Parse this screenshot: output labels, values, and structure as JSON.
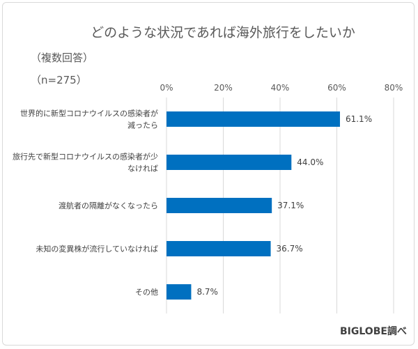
{
  "chart_data": {
    "type": "bar",
    "orientation": "horizontal",
    "title": "どのような状況であれば海外旅行をしたいか",
    "notes": [
      "（複数回答）",
      "（n=275）"
    ],
    "source": "BIGLOBE調べ",
    "categories": [
      [
        "世界的に新型コロナウイルスの感染者が",
        "減ったら"
      ],
      [
        "旅行先で新型コロナウイルスの感染者が少",
        "なければ"
      ],
      [
        "渡航者の隔離がなくなったら"
      ],
      [
        "未知の変異株が流行していなければ"
      ],
      [
        "その他"
      ]
    ],
    "values": [
      61.1,
      44.0,
      37.1,
      36.7,
      8.7
    ],
    "value_labels": [
      "61.1%",
      "44.0%",
      "37.1%",
      "36.7%",
      "8.7%"
    ],
    "xlim": [
      0,
      80
    ],
    "ticks": [
      0,
      20,
      40,
      60,
      80
    ],
    "tick_labels": [
      "0%",
      "20%",
      "40%",
      "60%",
      "80%"
    ],
    "bar_color": "#0070c0",
    "grid": true,
    "xlabel": "",
    "ylabel": ""
  }
}
